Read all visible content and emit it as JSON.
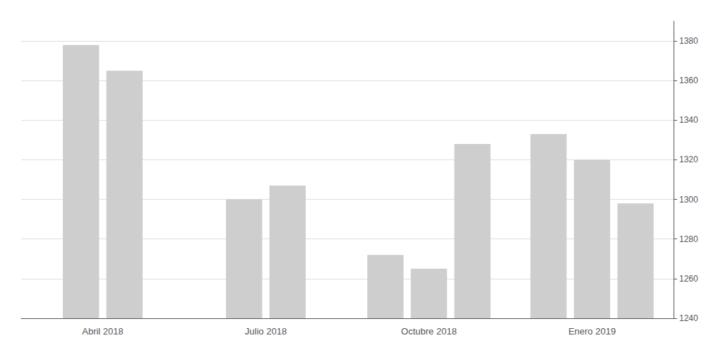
{
  "chart_data": {
    "type": "bar",
    "categories": [
      "Abril 2018",
      "Julio 2018",
      "Octubre 2018",
      "Enero 2019"
    ],
    "values": [
      [
        1378,
        1365
      ],
      [
        1300,
        1307
      ],
      [
        1272,
        1265,
        1328
      ],
      [
        1333,
        1320,
        1298
      ]
    ],
    "color": "#cecece",
    "ylim": [
      1240,
      1390
    ],
    "yticks": [
      1240,
      1260,
      1280,
      1300,
      1320,
      1340,
      1360,
      1380
    ],
    "grid": true
  }
}
